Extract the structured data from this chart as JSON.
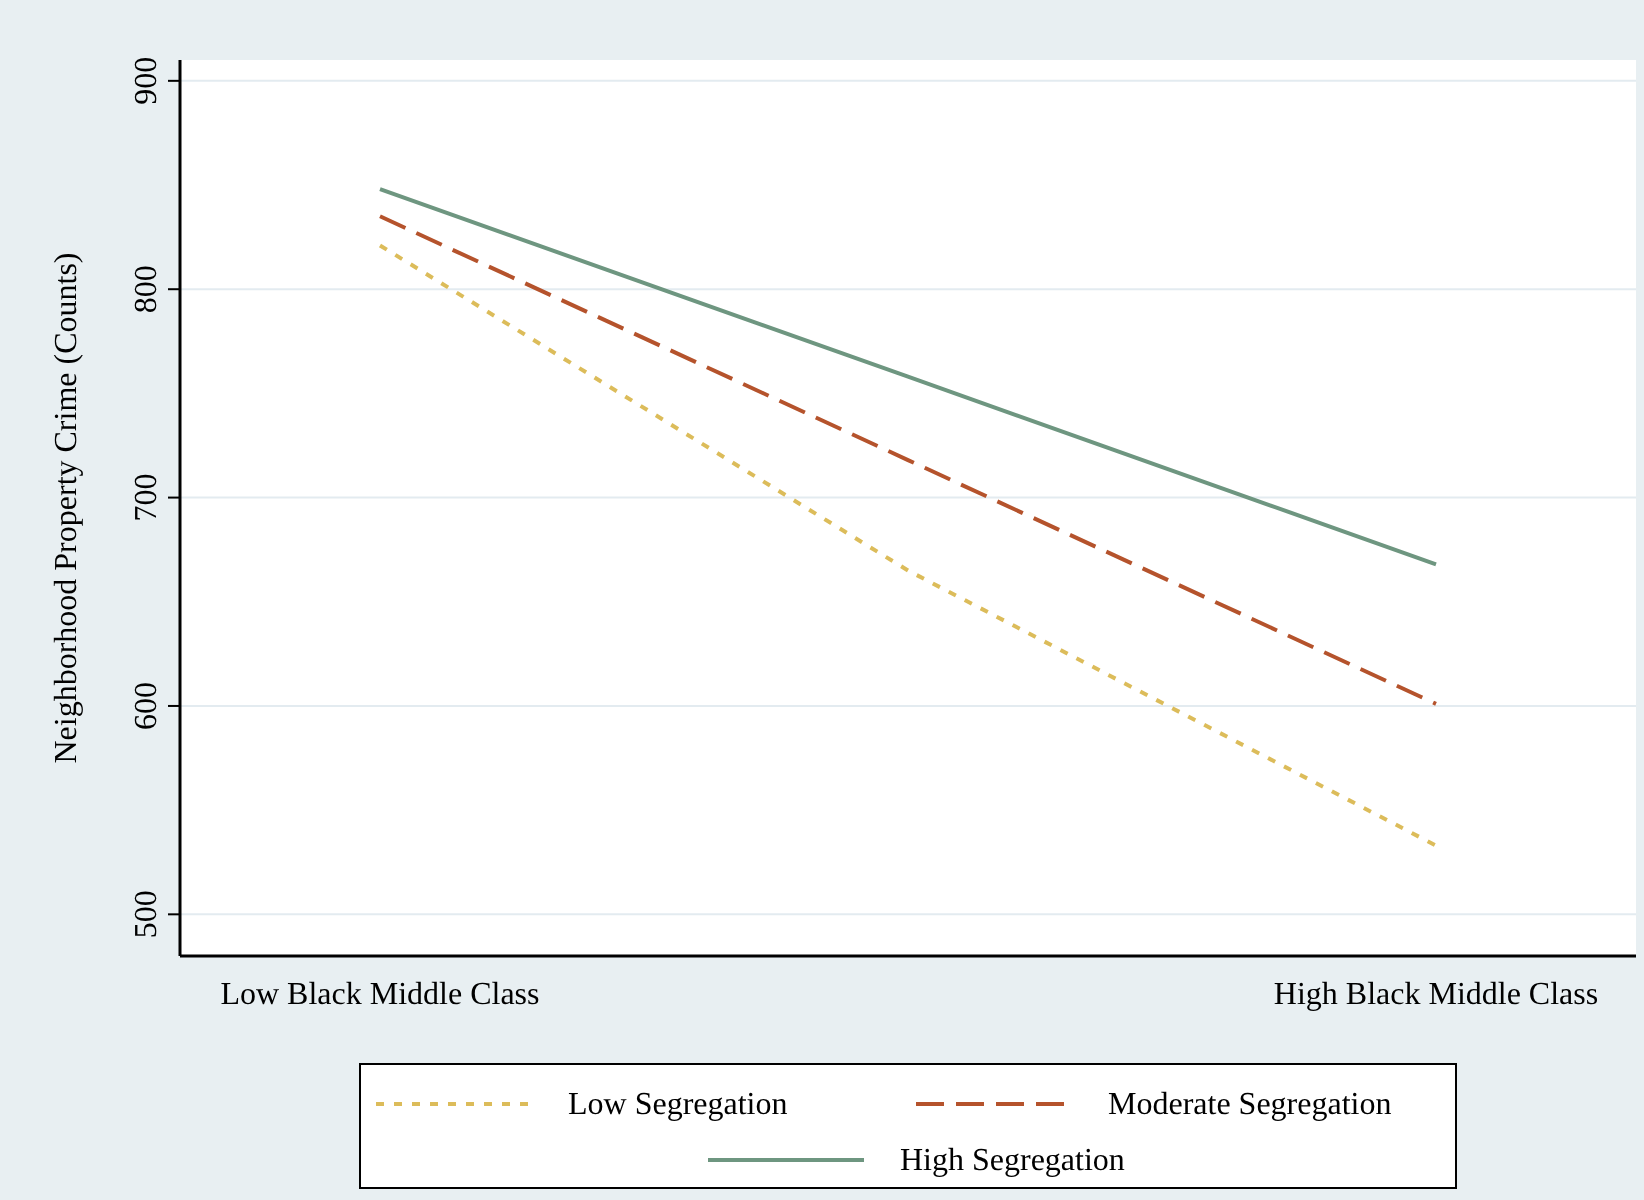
{
  "chart_data": {
    "type": "line",
    "ylabel": "Neighborhood Property Crime (Counts)",
    "categories": [
      "Low Black Middle Class",
      null,
      "High Black Middle Class"
    ],
    "ylim": [
      480,
      910
    ],
    "yticks": [
      500,
      600,
      700,
      800,
      900
    ],
    "grid": "y",
    "legend": "bottom",
    "marker": "none",
    "series": [
      {
        "name": "Low Segregation",
        "color": "#dcbc5a",
        "line_style": "dotted",
        "values": [
          821,
          665,
          533
        ]
      },
      {
        "name": "Moderate Segregation",
        "color": "#b5532c",
        "line_style": "dashed",
        "values": [
          835,
          718,
          601
        ]
      },
      {
        "name": "High Segregation",
        "color": "#6e9680",
        "line_style": "solid",
        "values": [
          848,
          758,
          668
        ]
      }
    ]
  }
}
